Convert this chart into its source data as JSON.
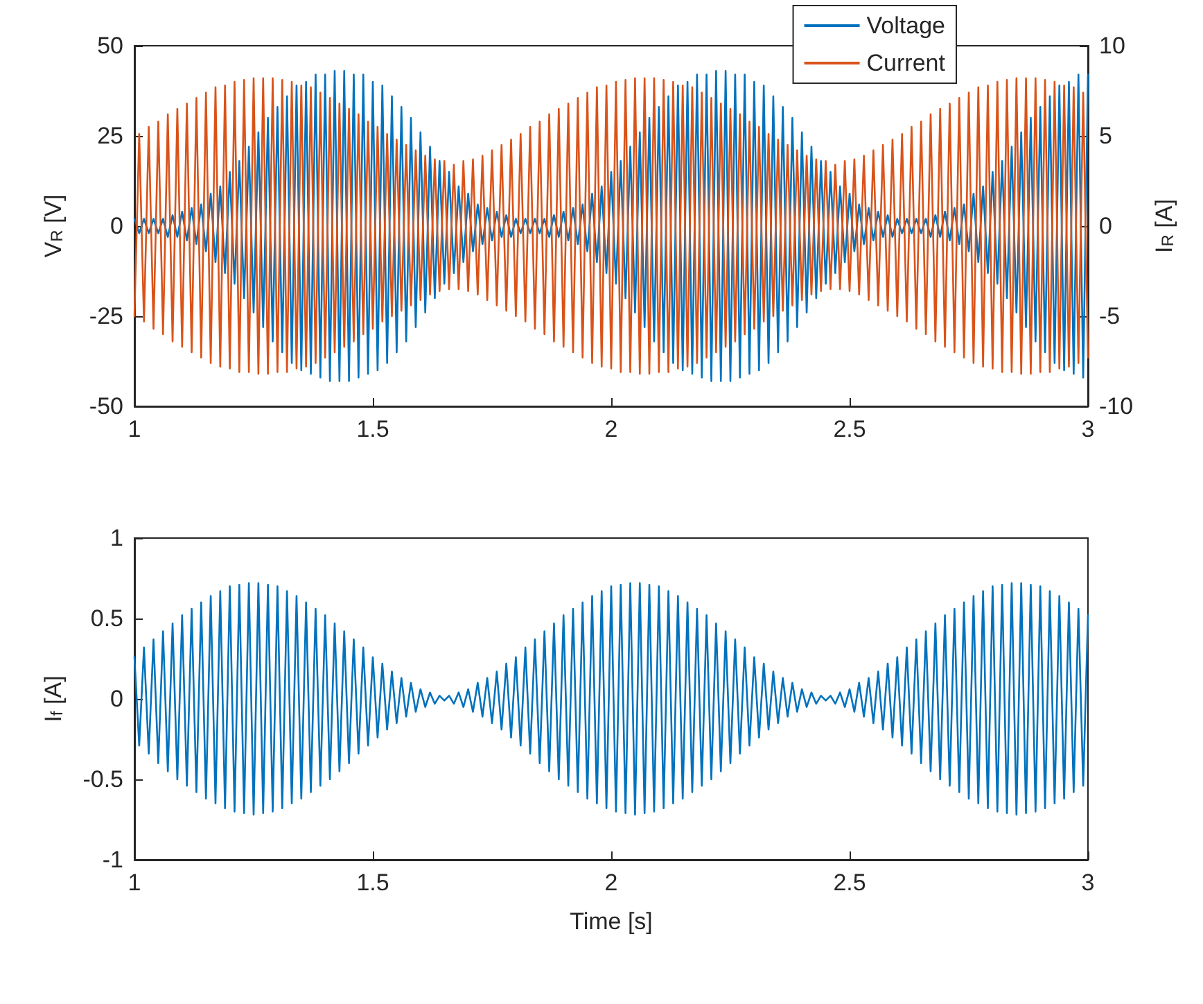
{
  "chart_data": [
    {
      "type": "line",
      "ylabel": "V$_{R}$ [V]",
      "y2label": "I$_{R}$ [A]",
      "x": [
        1,
        1.01,
        1.02,
        1.03,
        1.04,
        1.05,
        1.06,
        1.07,
        1.08,
        1.09,
        1.1,
        1.11,
        1.12,
        1.13,
        1.14,
        1.15,
        1.16,
        1.17,
        1.18,
        1.19,
        1.2,
        1.21,
        1.22,
        1.23,
        1.24,
        1.25,
        1.26,
        1.27,
        1.28,
        1.29,
        1.3,
        1.31,
        1.32,
        1.33,
        1.34,
        1.35,
        1.36,
        1.37,
        1.38,
        1.39,
        1.4,
        1.41,
        1.42,
        1.43,
        1.44,
        1.45,
        1.46,
        1.47,
        1.48,
        1.49,
        1.5,
        1.51,
        1.52,
        1.53,
        1.54,
        1.55,
        1.56,
        1.57,
        1.58,
        1.59,
        1.6,
        1.61,
        1.62,
        1.63,
        1.64,
        1.65,
        1.66,
        1.67,
        1.68,
        1.69,
        1.7,
        1.71,
        1.72,
        1.73,
        1.74,
        1.75,
        1.76,
        1.77,
        1.78,
        1.79,
        1.8,
        1.81,
        1.82,
        1.83,
        1.84,
        1.85,
        1.86,
        1.87,
        1.88,
        1.89,
        1.9,
        1.91,
        1.92,
        1.93,
        1.94,
        1.95,
        1.96,
        1.97,
        1.98,
        1.99,
        2,
        2.01,
        2.02,
        2.03,
        2.04,
        2.05,
        2.06,
        2.07,
        2.08,
        2.09,
        2.1,
        2.11,
        2.12,
        2.13,
        2.14,
        2.15,
        2.16,
        2.17,
        2.18,
        2.19,
        2.2,
        2.21,
        2.22,
        2.23,
        2.24,
        2.25,
        2.26,
        2.27,
        2.28,
        2.29,
        2.3,
        2.31,
        2.32,
        2.33,
        2.34,
        2.35,
        2.36,
        2.37,
        2.38,
        2.39,
        2.4,
        2.41,
        2.42,
        2.43,
        2.44,
        2.45,
        2.46,
        2.47,
        2.48,
        2.49,
        2.5,
        2.51,
        2.52,
        2.53,
        2.54,
        2.55,
        2.56,
        2.57,
        2.58,
        2.59,
        2.6,
        2.61,
        2.62,
        2.63,
        2.64,
        2.65,
        2.66,
        2.67,
        2.68,
        2.69,
        2.7,
        2.71,
        2.72,
        2.73,
        2.74,
        2.75,
        2.76,
        2.77,
        2.78,
        2.79,
        2.8,
        2.81,
        2.82,
        2.83,
        2.84,
        2.85,
        2.86,
        2.87,
        2.88,
        2.89,
        2.9,
        2.91,
        2.92,
        2.93,
        2.94,
        2.95,
        2.96,
        2.97,
        2.98,
        2.99,
        3
      ],
      "series": [
        {
          "name": "Voltage",
          "color": "#0072bd",
          "values": [
            2,
            -2,
            2,
            -2,
            2,
            -2,
            2,
            -3,
            3,
            -3,
            4,
            -4,
            5,
            -5,
            6,
            -7,
            9,
            -10,
            11,
            -13,
            15,
            -16,
            18,
            -20,
            22,
            -24,
            26,
            -28,
            30,
            -32,
            33,
            -35,
            36,
            -38,
            39,
            -40,
            40,
            -41,
            42,
            -42,
            42,
            -43,
            43,
            -43,
            43,
            -43,
            42,
            -42,
            42,
            -41,
            40,
            -40,
            39,
            -38,
            36,
            -35,
            33,
            -32,
            30,
            -28,
            26,
            -24,
            22,
            -20,
            18,
            -16,
            15,
            -13,
            11,
            -10,
            9,
            -7,
            6,
            -5,
            5,
            -4,
            4,
            -3,
            3,
            -3,
            2,
            -2,
            2,
            -2,
            2,
            -2,
            2,
            -3,
            3,
            -3,
            4,
            -4,
            5,
            -5,
            6,
            -7,
            9,
            -10,
            11,
            -13,
            15,
            -16,
            18,
            -20,
            22,
            -24,
            26,
            -28,
            30,
            -32,
            33,
            -35,
            36,
            -38,
            39,
            -40,
            40,
            -41,
            42,
            -42,
            42,
            -43,
            43,
            -43,
            43,
            -43,
            42,
            -42,
            42,
            -41,
            40,
            -40,
            39,
            -38,
            36,
            -35,
            33,
            -32,
            30,
            -28,
            26,
            -24,
            22,
            -20,
            18,
            -16,
            15,
            -13,
            11,
            -10,
            9,
            -7,
            6,
            -5,
            5,
            -4,
            4,
            -3,
            3,
            -3,
            2,
            -2,
            2,
            -2,
            2,
            -2,
            2,
            -3,
            3,
            -3,
            4,
            -4,
            5,
            -5,
            6,
            -7,
            9,
            -10,
            11,
            -13,
            15,
            -16,
            18,
            -20,
            22,
            -24,
            26,
            -28,
            30,
            -32,
            33,
            -35,
            36,
            -38,
            39,
            -40,
            40,
            -41,
            42,
            -42,
            42
          ]
        },
        {
          "name": "Current",
          "color": "#d95319",
          "axis": "y2",
          "values": [
            -5.0,
            5.1,
            -5.3,
            5.5,
            -5.7,
            5.8,
            -6.0,
            6.2,
            -6.4,
            6.5,
            -6.7,
            6.8,
            -7.0,
            7.1,
            -7.3,
            7.4,
            -7.6,
            7.7,
            -7.8,
            7.8,
            -7.9,
            8.0,
            -8.1,
            8.1,
            -8.1,
            8.2,
            -8.2,
            8.2,
            -8.2,
            8.2,
            -8.1,
            8.1,
            -8.1,
            8.0,
            -7.9,
            7.8,
            -7.8,
            7.7,
            -7.6,
            7.4,
            -7.3,
            7.1,
            -7.0,
            6.8,
            -6.7,
            6.5,
            -6.4,
            6.2,
            -6.0,
            5.8,
            -5.7,
            5.5,
            -5.3,
            5.1,
            -5.0,
            4.8,
            -4.7,
            4.5,
            -4.4,
            4.2,
            -4.1,
            3.9,
            -3.8,
            3.7,
            -3.6,
            3.6,
            -3.5,
            3.4,
            -3.5,
            3.6,
            -3.6,
            3.7,
            -3.8,
            3.9,
            -4.1,
            4.2,
            -4.4,
            4.5,
            -4.7,
            4.8,
            -5.0,
            5.1,
            -5.3,
            5.5,
            -5.7,
            5.8,
            -6.0,
            6.2,
            -6.4,
            6.5,
            -6.7,
            6.8,
            -7.0,
            7.1,
            -7.3,
            7.4,
            -7.6,
            7.7,
            -7.8,
            7.8,
            -7.9,
            8.0,
            -8.1,
            8.1,
            -8.1,
            8.2,
            -8.2,
            8.2,
            -8.2,
            8.2,
            -8.1,
            8.1,
            -8.1,
            8.0,
            -7.9,
            7.8,
            -7.8,
            7.7,
            -7.6,
            7.4,
            -7.3,
            7.1,
            -7.0,
            6.8,
            -6.7,
            6.5,
            -6.4,
            6.2,
            -6.0,
            5.8,
            -5.7,
            5.5,
            -5.3,
            5.1,
            -5.0,
            4.8,
            -4.7,
            4.5,
            -4.4,
            4.2,
            -4.1,
            3.9,
            -3.8,
            3.7,
            -3.6,
            3.6,
            -3.5,
            3.4,
            -3.5,
            3.6,
            -3.6,
            3.7,
            -3.8,
            3.9,
            -4.1,
            4.2,
            -4.4,
            4.5,
            -4.7,
            4.8,
            -5.0,
            5.1,
            -5.3,
            5.5,
            -5.7,
            5.8,
            -6.0,
            6.2,
            -6.4,
            6.5,
            -6.7,
            6.8,
            -7.0,
            7.1,
            -7.3,
            7.4,
            -7.6,
            7.7,
            -7.8,
            7.8,
            -7.9,
            8.0,
            -8.1,
            8.1,
            -8.1,
            8.2,
            -8.2,
            8.2,
            -8.2,
            8.2,
            -8.1,
            8.1,
            -8.1,
            8.0,
            -7.9,
            7.8,
            -7.8,
            7.7,
            -7.6,
            7.4,
            -7.3
          ]
        }
      ],
      "xlim": [
        1,
        3
      ],
      "xticks": [
        1,
        1.5,
        2,
        2.5,
        3
      ],
      "ylim": [
        -50,
        50
      ],
      "yticks": [
        -50,
        -25,
        0,
        25,
        50
      ],
      "y2lim": [
        -10,
        10
      ],
      "y2ticks": [
        -10,
        -5,
        0,
        5,
        10
      ],
      "legend": "top right"
    },
    {
      "type": "line",
      "xlabel": "Time [s]",
      "ylabel": "I$_{f}$ [A]",
      "x": [
        1,
        1.01,
        1.02,
        1.03,
        1.04,
        1.05,
        1.06,
        1.07,
        1.08,
        1.09,
        1.1,
        1.11,
        1.12,
        1.13,
        1.14,
        1.15,
        1.16,
        1.17,
        1.18,
        1.19,
        1.2,
        1.21,
        1.22,
        1.23,
        1.24,
        1.25,
        1.26,
        1.27,
        1.28,
        1.29,
        1.3,
        1.31,
        1.32,
        1.33,
        1.34,
        1.35,
        1.36,
        1.37,
        1.38,
        1.39,
        1.4,
        1.41,
        1.42,
        1.43,
        1.44,
        1.45,
        1.46,
        1.47,
        1.48,
        1.49,
        1.5,
        1.51,
        1.52,
        1.53,
        1.54,
        1.55,
        1.56,
        1.57,
        1.58,
        1.59,
        1.6,
        1.61,
        1.62,
        1.63,
        1.64,
        1.65,
        1.66,
        1.67,
        1.68,
        1.69,
        1.7,
        1.71,
        1.72,
        1.73,
        1.74,
        1.75,
        1.76,
        1.77,
        1.78,
        1.79,
        1.8,
        1.81,
        1.82,
        1.83,
        1.84,
        1.85,
        1.86,
        1.87,
        1.88,
        1.89,
        1.9,
        1.91,
        1.92,
        1.93,
        1.94,
        1.95,
        1.96,
        1.97,
        1.98,
        1.99,
        2,
        2.01,
        2.02,
        2.03,
        2.04,
        2.05,
        2.06,
        2.07,
        2.08,
        2.09,
        2.1,
        2.11,
        2.12,
        2.13,
        2.14,
        2.15,
        2.16,
        2.17,
        2.18,
        2.19,
        2.2,
        2.21,
        2.22,
        2.23,
        2.24,
        2.25,
        2.26,
        2.27,
        2.28,
        2.29,
        2.3,
        2.31,
        2.32,
        2.33,
        2.34,
        2.35,
        2.36,
        2.37,
        2.38,
        2.39,
        2.4,
        2.41,
        2.42,
        2.43,
        2.44,
        2.45,
        2.46,
        2.47,
        2.48,
        2.49,
        2.5,
        2.51,
        2.52,
        2.53,
        2.54,
        2.55,
        2.56,
        2.57,
        2.58,
        2.59,
        2.6,
        2.61,
        2.62,
        2.63,
        2.64,
        2.65,
        2.66,
        2.67,
        2.68,
        2.69,
        2.7,
        2.71,
        2.72,
        2.73,
        2.74,
        2.75,
        2.76,
        2.77,
        2.78,
        2.79,
        2.8,
        2.81,
        2.82,
        2.83,
        2.84,
        2.85,
        2.86,
        2.87,
        2.88,
        2.89,
        2.9,
        2.91,
        2.92,
        2.93,
        2.94,
        2.95,
        2.96,
        2.97,
        2.98,
        2.99,
        3
      ],
      "series": [
        {
          "color": "#0072bd",
          "values": [
            0.26,
            -0.29,
            0.32,
            -0.34,
            0.37,
            -0.4,
            0.42,
            -0.45,
            0.47,
            -0.5,
            0.52,
            -0.54,
            0.56,
            -0.58,
            0.6,
            -0.62,
            0.64,
            -0.65,
            0.67,
            -0.68,
            0.7,
            -0.7,
            0.71,
            -0.71,
            0.72,
            -0.72,
            0.72,
            -0.71,
            0.71,
            -0.7,
            0.7,
            -0.68,
            0.67,
            -0.65,
            0.64,
            -0.62,
            0.6,
            -0.58,
            0.56,
            -0.54,
            0.52,
            -0.5,
            0.47,
            -0.45,
            0.42,
            -0.4,
            0.37,
            -0.34,
            0.32,
            -0.29,
            0.26,
            -0.24,
            0.22,
            -0.19,
            0.17,
            -0.15,
            0.13,
            -0.11,
            0.1,
            -0.08,
            0.06,
            -0.05,
            0.04,
            -0.03,
            0.02,
            -0.01,
            0.02,
            -0.03,
            0.04,
            -0.05,
            0.06,
            -0.08,
            0.1,
            -0.11,
            0.13,
            -0.15,
            0.17,
            -0.19,
            0.22,
            -0.24,
            0.26,
            -0.29,
            0.32,
            -0.34,
            0.37,
            -0.4,
            0.42,
            -0.45,
            0.47,
            -0.5,
            0.52,
            -0.54,
            0.56,
            -0.58,
            0.6,
            -0.62,
            0.64,
            -0.65,
            0.67,
            -0.68,
            0.7,
            -0.7,
            0.71,
            -0.71,
            0.72,
            -0.72,
            0.72,
            -0.71,
            0.71,
            -0.7,
            0.7,
            -0.68,
            0.67,
            -0.65,
            0.64,
            -0.62,
            0.6,
            -0.58,
            0.56,
            -0.54,
            0.52,
            -0.5,
            0.47,
            -0.45,
            0.42,
            -0.4,
            0.37,
            -0.34,
            0.32,
            -0.29,
            0.26,
            -0.24,
            0.22,
            -0.19,
            0.17,
            -0.15,
            0.13,
            -0.11,
            0.1,
            -0.08,
            0.06,
            -0.05,
            0.04,
            -0.03,
            0.02,
            -0.01,
            0.02,
            -0.03,
            0.04,
            -0.05,
            0.06,
            -0.08,
            0.1,
            -0.11,
            0.13,
            -0.15,
            0.17,
            -0.19,
            0.22,
            -0.24,
            0.26,
            -0.29,
            0.32,
            -0.34,
            0.37,
            -0.4,
            0.42,
            -0.45,
            0.47,
            -0.5,
            0.52,
            -0.54,
            0.56,
            -0.58,
            0.6,
            -0.62,
            0.64,
            -0.65,
            0.67,
            -0.68,
            0.7,
            -0.7,
            0.71,
            -0.71,
            0.72,
            -0.72,
            0.72,
            -0.71,
            0.71,
            -0.7,
            0.7,
            -0.68,
            0.67,
            -0.65,
            0.64,
            -0.62,
            0.6,
            -0.58,
            0.56,
            -0.54,
            0.52
          ]
        }
      ],
      "xlim": [
        1,
        3
      ],
      "xticks": [
        1,
        1.5,
        2,
        2.5,
        3
      ],
      "ylim": [
        -1,
        1
      ],
      "yticks": [
        -1,
        -0.5,
        0,
        0.5,
        1
      ]
    }
  ]
}
